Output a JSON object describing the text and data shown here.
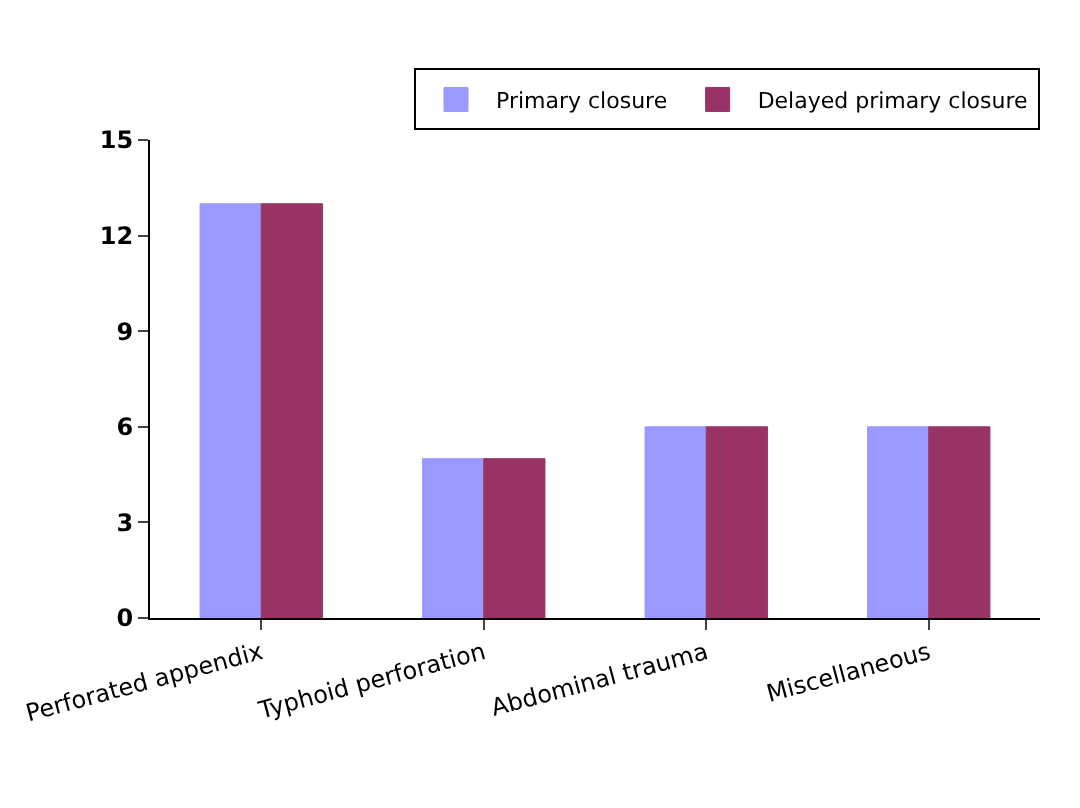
{
  "chart_data": {
    "type": "bar",
    "categories": [
      "Perforated appendix",
      "Typhoid perforation",
      "Abdominal trauma",
      "Miscellaneous"
    ],
    "series": [
      {
        "name": "Primary closure",
        "color": "#9999ff",
        "values": [
          13,
          5,
          6,
          6
        ]
      },
      {
        "name": "Delayed primary closure",
        "color": "#993366",
        "values": [
          13,
          5,
          6,
          6
        ]
      }
    ],
    "ylim": [
      0,
      15
    ],
    "yticks": [
      0,
      3,
      6,
      9,
      12,
      15
    ],
    "grid": false,
    "legend": "top right"
  }
}
